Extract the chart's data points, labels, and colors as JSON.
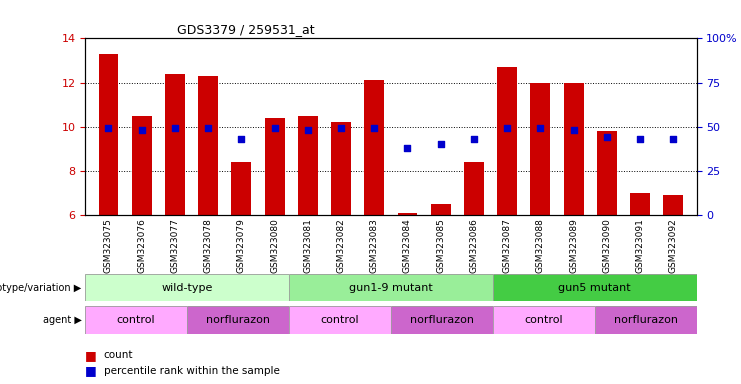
{
  "title": "GDS3379 / 259531_at",
  "samples": [
    "GSM323075",
    "GSM323076",
    "GSM323077",
    "GSM323078",
    "GSM323079",
    "GSM323080",
    "GSM323081",
    "GSM323082",
    "GSM323083",
    "GSM323084",
    "GSM323085",
    "GSM323086",
    "GSM323087",
    "GSM323088",
    "GSM323089",
    "GSM323090",
    "GSM323091",
    "GSM323092"
  ],
  "counts": [
    13.3,
    10.5,
    12.4,
    12.3,
    8.4,
    10.4,
    10.5,
    10.2,
    12.1,
    6.1,
    6.5,
    8.4,
    12.7,
    12.0,
    12.0,
    9.8,
    7.0,
    6.9
  ],
  "percentile_rank": [
    49,
    48,
    49,
    49,
    43,
    49,
    48,
    49,
    49,
    38,
    40,
    43,
    49,
    49,
    48,
    44,
    43,
    43
  ],
  "ylim_left": [
    6,
    14
  ],
  "ylim_right": [
    0,
    100
  ],
  "yticks_left": [
    6,
    8,
    10,
    12,
    14
  ],
  "yticks_right": [
    0,
    25,
    50,
    75,
    100
  ],
  "bar_color": "#cc0000",
  "dot_color": "#0000cc",
  "genotype_groups": [
    {
      "label": "wild-type",
      "start": 0,
      "end": 5,
      "color": "#ccffcc"
    },
    {
      "label": "gun1-9 mutant",
      "start": 6,
      "end": 11,
      "color": "#99ee99"
    },
    {
      "label": "gun5 mutant",
      "start": 12,
      "end": 17,
      "color": "#44cc44"
    }
  ],
  "agent_groups": [
    {
      "label": "control",
      "start": 0,
      "end": 2,
      "color": "#ffaaff"
    },
    {
      "label": "norflurazon",
      "start": 3,
      "end": 5,
      "color": "#cc66cc"
    },
    {
      "label": "control",
      "start": 6,
      "end": 8,
      "color": "#ffaaff"
    },
    {
      "label": "norflurazon",
      "start": 9,
      "end": 11,
      "color": "#cc66cc"
    },
    {
      "label": "control",
      "start": 12,
      "end": 14,
      "color": "#ffaaff"
    },
    {
      "label": "norflurazon",
      "start": 15,
      "end": 17,
      "color": "#cc66cc"
    }
  ],
  "legend_count_color": "#cc0000",
  "legend_dot_color": "#0000cc"
}
